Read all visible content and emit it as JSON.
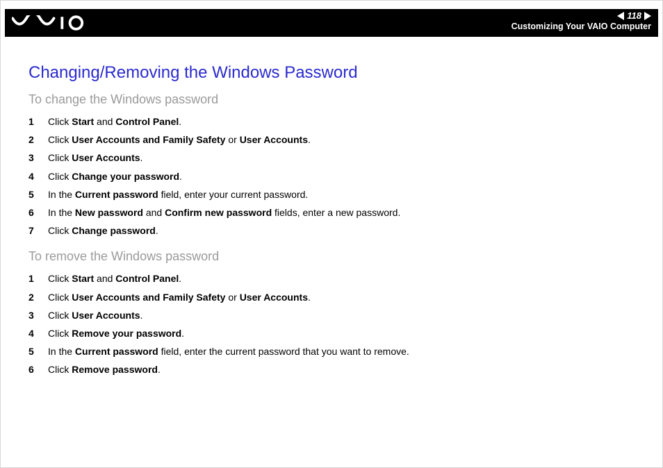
{
  "header": {
    "page_number": "118",
    "section_label": "Customizing Your VAIO Computer"
  },
  "colors": {
    "title": "#2a2acf",
    "subtitle": "#9a9a9a",
    "header_bg": "#000000",
    "header_fg": "#ffffff",
    "body_text": "#000000",
    "page_bg": "#ffffff"
  },
  "fonts": {
    "title_size_pt": 18,
    "subtitle_size_pt": 14,
    "body_size_pt": 10.5
  },
  "title": "Changing/Removing the Windows Password",
  "sections": [
    {
      "heading": "To change the Windows password",
      "steps": [
        [
          {
            "t": "Click "
          },
          {
            "t": "Start",
            "b": true
          },
          {
            "t": " and "
          },
          {
            "t": "Control Panel",
            "b": true
          },
          {
            "t": "."
          }
        ],
        [
          {
            "t": "Click "
          },
          {
            "t": "User Accounts and Family Safety",
            "b": true
          },
          {
            "t": " or "
          },
          {
            "t": "User Accounts",
            "b": true
          },
          {
            "t": "."
          }
        ],
        [
          {
            "t": "Click "
          },
          {
            "t": "User Accounts",
            "b": true
          },
          {
            "t": "."
          }
        ],
        [
          {
            "t": "Click "
          },
          {
            "t": "Change your password",
            "b": true
          },
          {
            "t": "."
          }
        ],
        [
          {
            "t": "In the "
          },
          {
            "t": "Current password",
            "b": true
          },
          {
            "t": " field, enter your current password."
          }
        ],
        [
          {
            "t": "In the "
          },
          {
            "t": "New password",
            "b": true
          },
          {
            "t": " and "
          },
          {
            "t": "Confirm new password",
            "b": true
          },
          {
            "t": " fields, enter a new password."
          }
        ],
        [
          {
            "t": "Click "
          },
          {
            "t": "Change password",
            "b": true
          },
          {
            "t": "."
          }
        ]
      ]
    },
    {
      "heading": "To remove the Windows password",
      "steps": [
        [
          {
            "t": "Click "
          },
          {
            "t": "Start",
            "b": true
          },
          {
            "t": " and "
          },
          {
            "t": "Control Panel",
            "b": true
          },
          {
            "t": "."
          }
        ],
        [
          {
            "t": "Click "
          },
          {
            "t": "User Accounts and Family Safety",
            "b": true
          },
          {
            "t": " or "
          },
          {
            "t": "User Accounts",
            "b": true
          },
          {
            "t": "."
          }
        ],
        [
          {
            "t": "Click "
          },
          {
            "t": "User Accounts",
            "b": true
          },
          {
            "t": "."
          }
        ],
        [
          {
            "t": "Click "
          },
          {
            "t": "Remove your password",
            "b": true
          },
          {
            "t": "."
          }
        ],
        [
          {
            "t": "In the "
          },
          {
            "t": "Current password",
            "b": true
          },
          {
            "t": " field, enter the current password that you want to remove."
          }
        ],
        [
          {
            "t": "Click "
          },
          {
            "t": "Remove password",
            "b": true
          },
          {
            "t": "."
          }
        ]
      ]
    }
  ]
}
